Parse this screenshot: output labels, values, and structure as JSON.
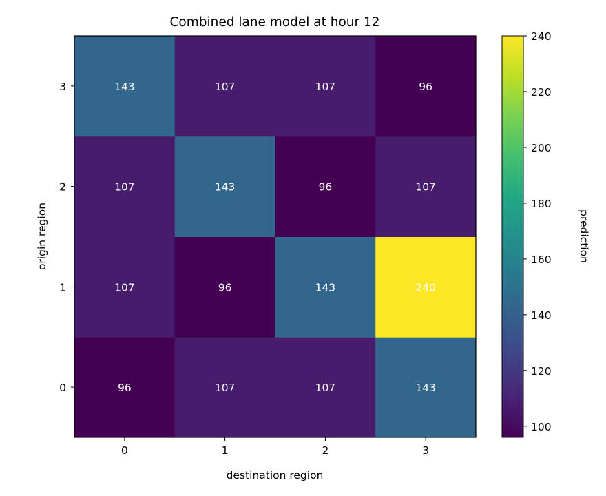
{
  "chart_data": {
    "type": "heatmap",
    "title": "Combined lane model at hour 12",
    "xlabel": "destination region",
    "ylabel": "origin region",
    "x_categories": [
      "0",
      "1",
      "2",
      "3"
    ],
    "y_categories": [
      "0",
      "1",
      "2",
      "3"
    ],
    "values": [
      [
        96,
        107,
        107,
        143
      ],
      [
        107,
        96,
        143,
        240
      ],
      [
        107,
        143,
        96,
        107
      ],
      [
        143,
        107,
        107,
        96
      ]
    ],
    "colorbar": {
      "label": "prediction",
      "range": [
        96,
        240
      ],
      "ticks": [
        100,
        120,
        140,
        160,
        180,
        200,
        220,
        240
      ]
    },
    "colormap": "viridis",
    "annotation_color": "#ffffff"
  }
}
